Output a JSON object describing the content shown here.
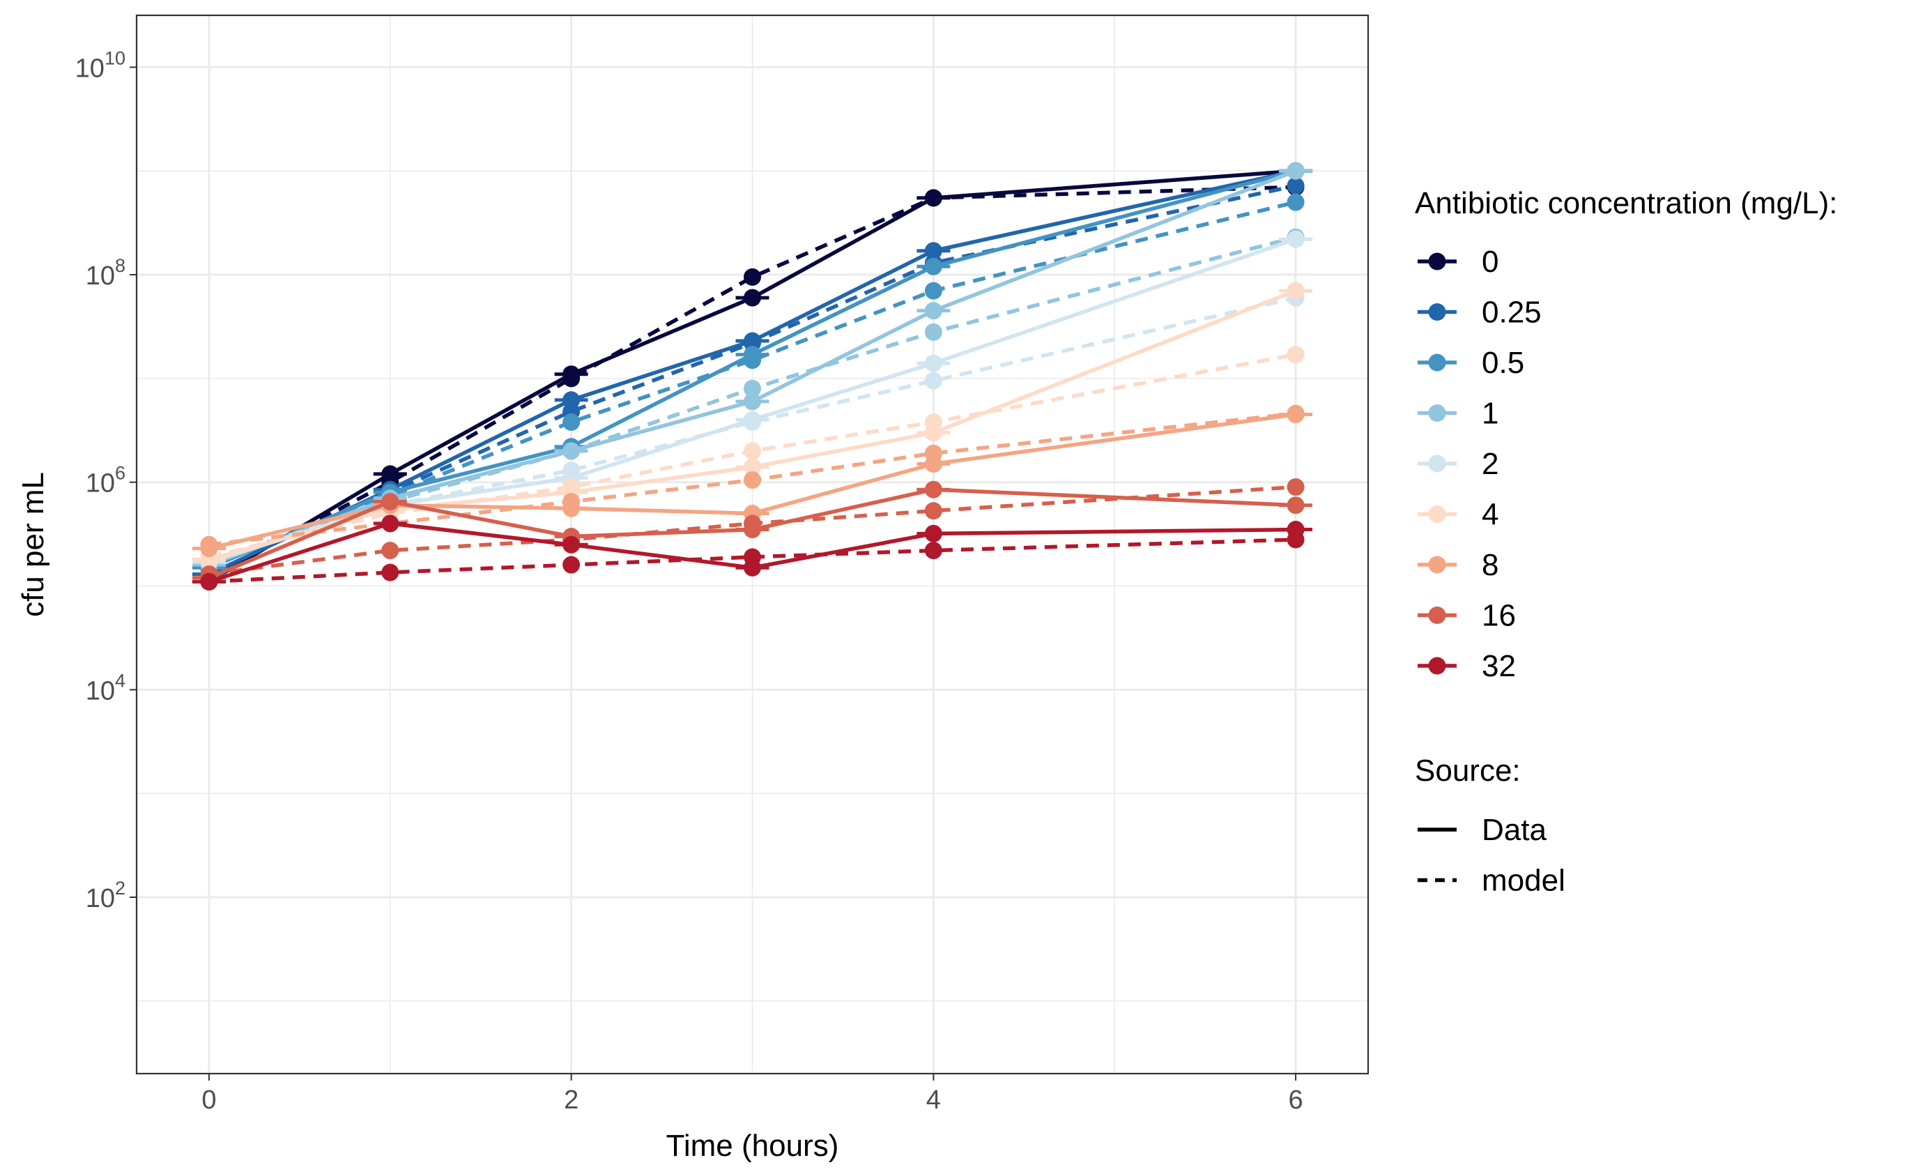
{
  "chart_data": {
    "type": "line",
    "xlabel": "Time (hours)",
    "ylabel": "cfu per mL",
    "xlim": [
      -0.4,
      6.4
    ],
    "ylim_log10": [
      0.3,
      10.5
    ],
    "y_scale": "log10",
    "x_ticks": [
      0,
      2,
      4,
      6
    ],
    "x_ticks_minor": [
      1,
      3,
      5
    ],
    "y_ticks": [
      {
        "base": "10",
        "exp": "2",
        "value": 100
      },
      {
        "base": "10",
        "exp": "4",
        "value": 10000
      },
      {
        "base": "10",
        "exp": "6",
        "value": 1000000
      },
      {
        "base": "10",
        "exp": "8",
        "value": 100000000
      },
      {
        "base": "10",
        "exp": "10",
        "value": 10000000000
      }
    ],
    "grid": true,
    "legend_placement": "right",
    "legend_color_title": "Antibiotic concentration (mg/L):",
    "legend_linetype_title": "Source:",
    "linetypes": [
      {
        "name": "Data",
        "style": "solid"
      },
      {
        "name": "model",
        "style": "dashed"
      }
    ],
    "series": [
      {
        "name": "0",
        "color": "#08083F",
        "data_x": [
          0,
          1,
          2,
          3,
          4,
          6
        ],
        "data_y": [
          110000,
          1200000,
          11000000,
          60000000,
          550000000,
          1000000000
        ],
        "model_x": [
          0,
          1,
          2,
          3,
          4,
          6
        ],
        "model_y": [
          120000,
          1000000,
          10000000,
          95000000,
          550000000,
          700000000
        ]
      },
      {
        "name": "0.25",
        "color": "#2166AC",
        "data_x": [
          0,
          1,
          2,
          3,
          4,
          6
        ],
        "data_y": [
          130000,
          850000,
          6200000,
          23000000,
          170000000,
          1000000000
        ],
        "model_x": [
          0,
          1,
          2,
          3,
          4,
          6
        ],
        "model_y": [
          150000,
          800000,
          4800000,
          22000000,
          130000000,
          720000000
        ]
      },
      {
        "name": "0.5",
        "color": "#4393C3",
        "data_x": [
          0,
          1,
          2,
          3,
          4,
          6
        ],
        "data_y": [
          150000,
          800000,
          2200000,
          17000000,
          120000000,
          1000000000
        ],
        "model_x": [
          0,
          1,
          2,
          3,
          4,
          6
        ],
        "model_y": [
          160000,
          750000,
          3800000,
          15000000,
          70000000,
          500000000
        ]
      },
      {
        "name": "1",
        "color": "#92C5DE",
        "data_x": [
          0,
          1,
          2,
          3,
          4,
          6
        ],
        "data_y": [
          160000,
          700000,
          2000000,
          6000000,
          45000000,
          1000000000
        ],
        "model_x": [
          0,
          1,
          2,
          3,
          4,
          6
        ],
        "model_y": [
          170000,
          650000,
          2000000,
          8000000,
          28000000,
          230000000
        ]
      },
      {
        "name": "2",
        "color": "#D1E5F0",
        "data_x": [
          0,
          1,
          2,
          3,
          4,
          6
        ],
        "data_y": [
          170000,
          600000,
          1100000,
          4000000,
          14000000,
          220000000
        ],
        "model_x": [
          0,
          1,
          2,
          3,
          4,
          6
        ],
        "model_y": [
          180000,
          600000,
          1300000,
          3800000,
          9500000,
          60000000
        ]
      },
      {
        "name": "4",
        "color": "#FDDBC7",
        "data_x": [
          0,
          1,
          2,
          3,
          4,
          6
        ],
        "data_y": [
          180000,
          550000,
          800000,
          1400000,
          3000000,
          70000000
        ],
        "model_x": [
          0,
          1,
          2,
          3,
          4,
          6
        ],
        "model_y": [
          190000,
          500000,
          900000,
          2000000,
          3800000,
          17000000
        ]
      },
      {
        "name": "8",
        "color": "#F4A582",
        "data_x": [
          0,
          1,
          2,
          3,
          4,
          6
        ],
        "data_y": [
          230000,
          600000,
          560000,
          500000,
          1500000,
          4500000
        ],
        "model_x": [
          0,
          1,
          2,
          3,
          4,
          6
        ],
        "model_y": [
          250000,
          400000,
          650000,
          1050000,
          1900000,
          4600000
        ]
      },
      {
        "name": "16",
        "color": "#D6604D",
        "data_x": [
          0,
          1,
          2,
          3,
          4,
          6
        ],
        "data_y": [
          120000,
          650000,
          300000,
          350000,
          850000,
          600000
        ],
        "model_x": [
          0,
          1,
          2,
          3,
          4,
          6
        ],
        "model_y": [
          130000,
          220000,
          280000,
          400000,
          530000,
          900000
        ]
      },
      {
        "name": "32",
        "color": "#B2182B",
        "data_x": [
          0,
          1,
          2,
          3,
          4,
          6
        ],
        "data_y": [
          110000,
          400000,
          250000,
          150000,
          320000,
          350000
        ],
        "model_x": [
          0,
          1,
          2,
          3,
          4,
          6
        ],
        "model_y": [
          110000,
          135000,
          160000,
          190000,
          220000,
          280000
        ]
      }
    ]
  }
}
